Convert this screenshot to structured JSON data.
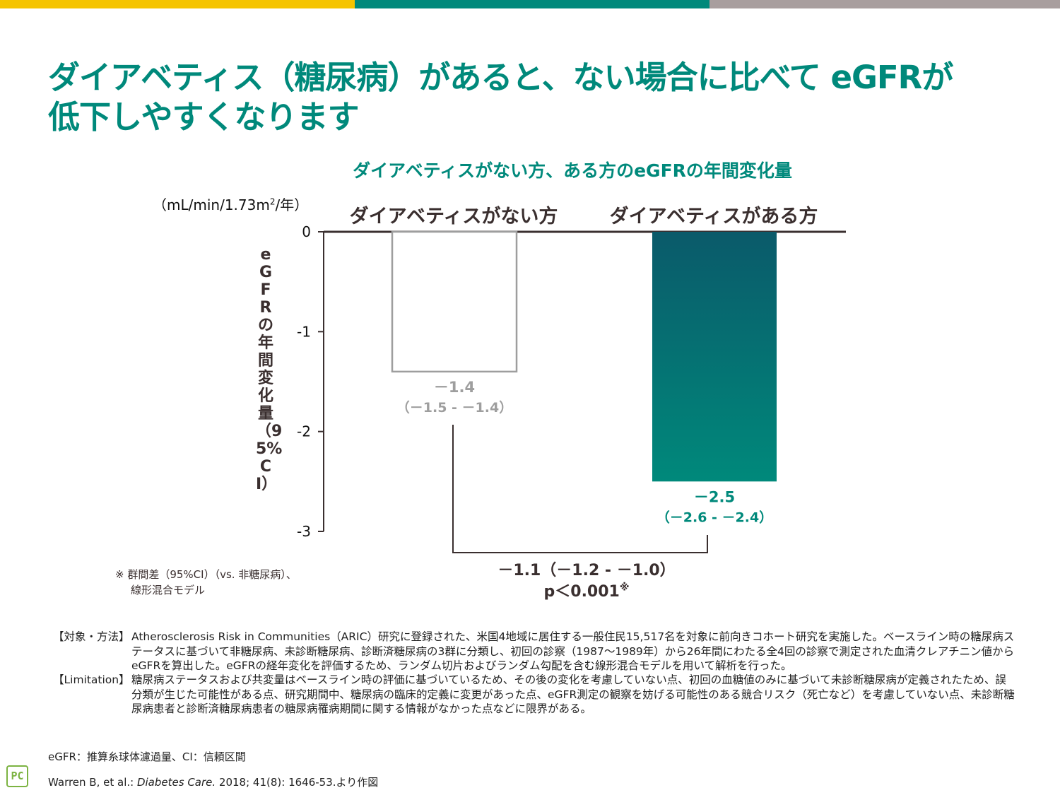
{
  "header_colors": [
    "#f5c400",
    "#00897b",
    "#a89e9e"
  ],
  "title": "ダイアベティス（糖尿病）があると、ない場合に比べて eGFRが低下しやすくなります",
  "chart_data": {
    "type": "bar",
    "title": "ダイアベティスがない方、ある方のeGFRの年間変化量",
    "unit_label": "（mL/min/1.73m",
    "unit_sup": "2",
    "unit_suffix": "/年）",
    "ylabel": "eGFRの年間変化量（95%CI）",
    "ylim": [
      -3,
      0
    ],
    "yticks": [
      0,
      -1,
      -2,
      -3
    ],
    "ytick_labels": [
      "0",
      "-1",
      "-2",
      "-3"
    ],
    "grid": false,
    "categories": [
      "ダイアベティスがない方",
      "ダイアベティスがある方"
    ],
    "values": [
      -1.4,
      -2.5
    ],
    "value_labels": [
      "－1.4",
      "－2.5"
    ],
    "ci_labels": [
      "（－1.5 - －1.4）",
      "（－2.6 - －2.4）"
    ],
    "bar_colors": [
      "#ffffff",
      "#00897b"
    ],
    "bar_gradient_top": "#0a5a6a",
    "label_colors": [
      "#9e9e9e",
      "#00897b"
    ],
    "difference": {
      "text": "－1.1（－1.2 - －1.0）",
      "p_text": "p＜0.001",
      "p_mark": "※"
    }
  },
  "footnote": [
    "※ 群間差（95%CI）（vs. 非糖尿病）、",
    "線形混合モデル"
  ],
  "methods": [
    {
      "label": "【対象・方法】",
      "text": "Atherosclerosis Risk in Communities（ARIC）研究に登録された、米国4地域に居住する一般住民15,517名を対象に前向きコホート研究を実施した。ベースライン時の糖尿病ステータスに基づいて非糖尿病、未診断糖尿病、診断済糖尿病の3群に分類し、初回の診察（1987〜1989年）から26年間にわたる全4回の診察で測定された血清クレアチニン値からeGFRを算出した。eGFRの経年変化を評価するため、ランダム切片およびランダム勾配を含む線形混合モデルを用いて解析を行った。"
    },
    {
      "label": "【Limitation】",
      "text": "糖尿病ステータスおよび共変量はベースライン時の評価に基づいているため、その後の変化を考慮していない点、初回の血糖値のみに基づいて未診断糖尿病が定義されたため、誤分類が生じた可能性がある点、研究期間中、糖尿病の臨床的定義に変更があった点、eGFR測定の観察を妨げる可能性のある競合リスク（死亡など）を考慮していない点、未診断糖尿病患者と診断済糖尿病患者の糖尿病罹病期間に関する情報がなかった点などに限界がある。"
    }
  ],
  "abbreviations": "eGFR：推算糸球体濾過量、CI：信頼区間",
  "reference": {
    "prefix": "Warren B, et al.: ",
    "journal": "Diabetes Care.",
    "suffix": " 2018; 41(8): 1646-53.より作図"
  },
  "logo_text": "PC"
}
